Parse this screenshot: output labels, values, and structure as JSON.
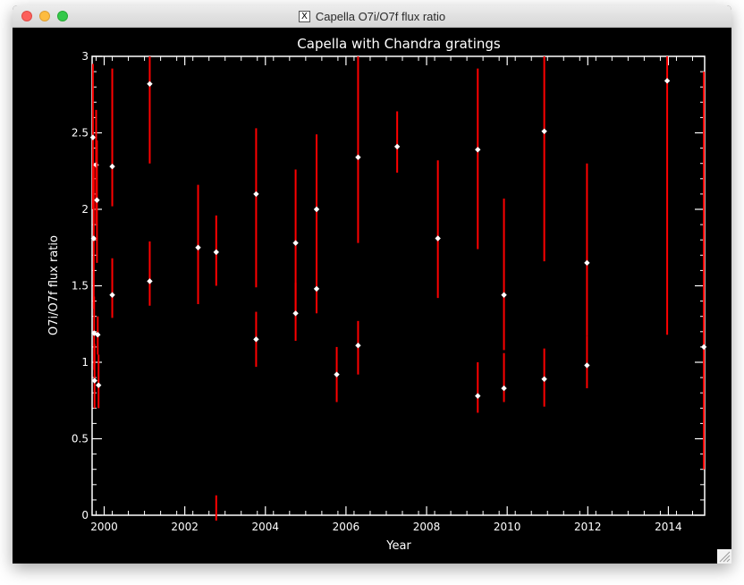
{
  "window": {
    "title": "Capella O7i/O7f flux ratio",
    "close_label": "close",
    "minimize_label": "minimize",
    "zoom_label": "zoom"
  },
  "chart_data": {
    "type": "scatter",
    "title": "Capella with Chandra gratings",
    "xlabel": "Year",
    "ylabel": "O7i/O7f flux ratio",
    "xlim": [
      1999.7,
      2014.9
    ],
    "ylim": [
      0,
      3
    ],
    "xticks": [
      2000,
      2002,
      2004,
      2006,
      2008,
      2010,
      2012,
      2014
    ],
    "yticks": [
      0,
      0.5,
      1,
      1.5,
      2,
      2.5,
      3
    ],
    "ytick_labels": [
      "0",
      "0.5",
      "1",
      "1.5",
      "2",
      "2.5",
      "3"
    ],
    "grid": false,
    "colors": {
      "background": "#000000",
      "axes": "#ffffff",
      "errorbar": "#ff0000",
      "marker": "#ffffff"
    },
    "points": [
      {
        "x": 1999.72,
        "y": 2.47,
        "ylo": 2.0,
        "yhi": 2.95
      },
      {
        "x": 1999.74,
        "y": 1.81,
        "ylo": 1.35,
        "yhi": 2.3
      },
      {
        "x": 1999.75,
        "y": 1.19,
        "ylo": 0.95,
        "yhi": 1.43
      },
      {
        "x": 1999.76,
        "y": 0.88,
        "ylo": 0.7,
        "yhi": 1.12
      },
      {
        "x": 1999.8,
        "y": 2.29,
        "ylo": 1.9,
        "yhi": 2.65
      },
      {
        "x": 1999.82,
        "y": 2.06,
        "ylo": 1.65,
        "yhi": 2.45
      },
      {
        "x": 1999.84,
        "y": 1.18,
        "ylo": 1.05,
        "yhi": 1.3
      },
      {
        "x": 1999.86,
        "y": 0.85,
        "ylo": 0.7,
        "yhi": 1.05
      },
      {
        "x": 2000.2,
        "y": 2.28,
        "ylo": 2.02,
        "yhi": 2.92
      },
      {
        "x": 2000.2,
        "y": 1.44,
        "ylo": 1.29,
        "yhi": 1.68
      },
      {
        "x": 2001.13,
        "y": 2.82,
        "ylo": 2.3,
        "yhi": 3.0
      },
      {
        "x": 2001.13,
        "y": 1.53,
        "ylo": 1.37,
        "yhi": 1.79
      },
      {
        "x": 2002.33,
        "y": 1.75,
        "ylo": 1.38,
        "yhi": 2.16
      },
      {
        "x": 2002.78,
        "y": 1.72,
        "ylo": 1.5,
        "yhi": 1.96
      },
      {
        "x": 2002.78,
        "y": -0.1,
        "ylo": -0.3,
        "yhi": 0.13
      },
      {
        "x": 2003.77,
        "y": 2.1,
        "ylo": 1.49,
        "yhi": 2.53
      },
      {
        "x": 2003.77,
        "y": 1.15,
        "ylo": 0.97,
        "yhi": 1.33
      },
      {
        "x": 2004.75,
        "y": 1.78,
        "ylo": 1.32,
        "yhi": 2.26
      },
      {
        "x": 2004.75,
        "y": 1.32,
        "ylo": 1.14,
        "yhi": 1.52
      },
      {
        "x": 2005.27,
        "y": 2.0,
        "ylo": 1.52,
        "yhi": 2.49
      },
      {
        "x": 2005.27,
        "y": 1.48,
        "ylo": 1.32,
        "yhi": 1.72
      },
      {
        "x": 2005.77,
        "y": 0.92,
        "ylo": 0.74,
        "yhi": 1.1
      },
      {
        "x": 2006.3,
        "y": 2.34,
        "ylo": 1.78,
        "yhi": 3.0
      },
      {
        "x": 2006.3,
        "y": 1.11,
        "ylo": 0.92,
        "yhi": 1.27
      },
      {
        "x": 2007.27,
        "y": 2.41,
        "ylo": 2.24,
        "yhi": 2.64
      },
      {
        "x": 2008.28,
        "y": 1.81,
        "ylo": 1.42,
        "yhi": 2.32
      },
      {
        "x": 2009.27,
        "y": 2.39,
        "ylo": 1.74,
        "yhi": 2.92
      },
      {
        "x": 2009.27,
        "y": 0.78,
        "ylo": 0.67,
        "yhi": 1.0
      },
      {
        "x": 2009.92,
        "y": 1.44,
        "ylo": 1.08,
        "yhi": 2.07
      },
      {
        "x": 2009.92,
        "y": 0.83,
        "ylo": 0.74,
        "yhi": 1.06
      },
      {
        "x": 2010.92,
        "y": 2.51,
        "ylo": 1.66,
        "yhi": 3.0
      },
      {
        "x": 2010.92,
        "y": 0.89,
        "ylo": 0.71,
        "yhi": 1.09
      },
      {
        "x": 2011.98,
        "y": 1.65,
        "ylo": 1.17,
        "yhi": 2.3
      },
      {
        "x": 2011.98,
        "y": 0.98,
        "ylo": 0.83,
        "yhi": 1.17
      },
      {
        "x": 2013.97,
        "y": 2.84,
        "ylo": 1.18,
        "yhi": 3.0
      },
      {
        "x": 2014.88,
        "y": 1.1,
        "ylo": 0.3,
        "yhi": 2.9
      }
    ]
  }
}
